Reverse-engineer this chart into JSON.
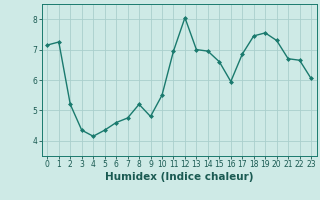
{
  "x": [
    0,
    1,
    2,
    3,
    4,
    5,
    6,
    7,
    8,
    9,
    10,
    11,
    12,
    13,
    14,
    15,
    16,
    17,
    18,
    19,
    20,
    21,
    22,
    23
  ],
  "y": [
    7.15,
    7.25,
    5.2,
    4.35,
    4.15,
    4.35,
    4.6,
    4.75,
    5.2,
    4.8,
    5.5,
    6.95,
    8.05,
    7.0,
    6.95,
    6.6,
    5.95,
    6.85,
    7.45,
    7.55,
    7.3,
    6.7,
    6.65,
    6.05
  ],
  "line_color": "#1a7a6e",
  "marker": "D",
  "marker_size": 2.0,
  "bg_color": "#ceeae6",
  "grid_color": "#aacfcc",
  "xlabel": "Humidex (Indice chaleur)",
  "ylim": [
    3.5,
    8.5
  ],
  "xlim": [
    -0.5,
    23.5
  ],
  "yticks": [
    4,
    5,
    6,
    7,
    8
  ],
  "xticks": [
    0,
    1,
    2,
    3,
    4,
    5,
    6,
    7,
    8,
    9,
    10,
    11,
    12,
    13,
    14,
    15,
    16,
    17,
    18,
    19,
    20,
    21,
    22,
    23
  ],
  "label_color": "#1a5a52",
  "tick_color": "#1a5a52",
  "spine_color": "#1a7a6e",
  "xlabel_fontsize": 7.5,
  "tick_fontsize": 5.5,
  "linewidth": 1.0
}
